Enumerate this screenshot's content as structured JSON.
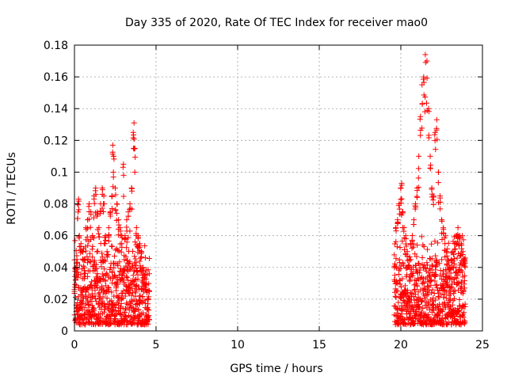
{
  "chart_data": {
    "type": "scatter",
    "title": "Day 335 of 2020, Rate Of TEC Index for receiver mao0",
    "xlabel": "GPS time / hours",
    "ylabel": "ROTI / TECUs",
    "xlim": [
      0,
      25
    ],
    "ylim": [
      0,
      0.18
    ],
    "xticks": [
      "0",
      "5",
      "10",
      "15",
      "20",
      "25"
    ],
    "yticks": [
      "0",
      "0.02",
      "0.04",
      "0.06",
      "0.08",
      "0.1",
      "0.12",
      "0.14",
      "0.16",
      "0.18"
    ],
    "grid": true,
    "marker": "+",
    "color": "#ff0000",
    "series": [
      {
        "x": [
          0.05,
          0.15,
          0.2,
          0.25,
          0.3,
          0.4,
          0.5,
          0.6,
          0.7,
          0.8,
          0.9,
          1.0,
          1.1,
          1.2,
          1.3,
          1.4,
          1.5,
          1.6,
          1.7,
          1.8,
          1.9,
          2.0,
          2.1,
          2.2,
          2.3,
          2.35,
          2.4,
          2.5,
          2.6,
          2.7,
          2.8,
          2.9,
          3.0,
          3.1,
          3.2,
          3.3,
          3.4,
          3.5,
          3.6,
          3.65,
          3.7,
          3.8,
          3.9,
          4.0,
          4.1,
          4.2,
          4.3,
          4.4,
          4.5,
          19.7,
          19.8,
          19.9,
          20.0,
          20.05,
          20.1,
          20.2,
          20.3,
          20.4,
          20.5,
          20.6,
          20.7,
          20.8,
          20.9,
          21.0,
          21.1,
          21.2,
          21.3,
          21.4,
          21.5,
          21.6,
          21.7,
          21.8,
          21.9,
          22.0,
          22.1,
          22.2,
          22.3,
          22.4,
          22.5,
          22.6,
          22.7,
          22.8,
          22.9,
          23.0,
          23.1,
          23.2,
          23.3,
          23.4,
          23.5,
          23.6,
          23.7,
          23.8,
          23.9
        ],
        "y": [
          0.04,
          0.045,
          0.08,
          0.083,
          0.06,
          0.055,
          0.05,
          0.045,
          0.065,
          0.07,
          0.08,
          0.075,
          0.06,
          0.085,
          0.09,
          0.075,
          0.065,
          0.08,
          0.09,
          0.085,
          0.06,
          0.05,
          0.065,
          0.075,
          0.085,
          0.117,
          0.11,
          0.09,
          0.08,
          0.07,
          0.065,
          0.06,
          0.105,
          0.06,
          0.07,
          0.075,
          0.08,
          0.09,
          0.125,
          0.131,
          0.115,
          0.065,
          0.06,
          0.055,
          0.05,
          0.04,
          0.035,
          0.03,
          0.02,
          0.065,
          0.07,
          0.08,
          0.09,
          0.093,
          0.075,
          0.065,
          0.06,
          0.05,
          0.045,
          0.055,
          0.06,
          0.07,
          0.08,
          0.09,
          0.11,
          0.135,
          0.155,
          0.16,
          0.174,
          0.17,
          0.14,
          0.11,
          0.09,
          0.085,
          0.125,
          0.133,
          0.1,
          0.085,
          0.07,
          0.065,
          0.055,
          0.05,
          0.045,
          0.04,
          0.045,
          0.05,
          0.055,
          0.06,
          0.065,
          0.06,
          0.055,
          0.05,
          0.045
        ]
      }
    ],
    "dense_bands": [
      {
        "x_start": 0.0,
        "x_end": 4.6,
        "y_low": 0.004,
        "y_high": 0.045
      },
      {
        "x_start": 19.6,
        "x_end": 23.95,
        "y_low": 0.004,
        "y_high": 0.045
      }
    ]
  }
}
